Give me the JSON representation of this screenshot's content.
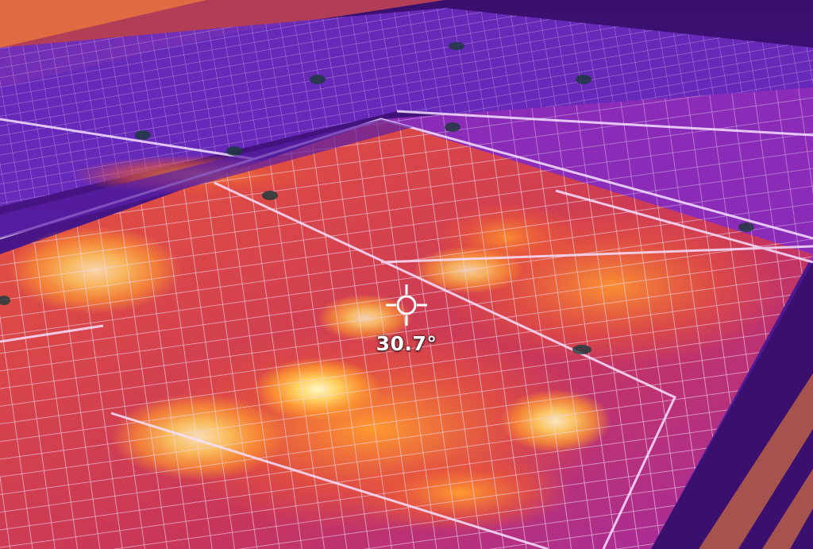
{
  "thermal_view": {
    "spot_temperature": "30.7°",
    "palette": {
      "coldest": "#2a0a55",
      "cool": "#5a1fa8",
      "mid": "#a02aa8",
      "warm": "#e8553a",
      "hot": "#ffb020",
      "hottest": "#fff7c8"
    },
    "icons": [
      "crosshair-icon"
    ]
  }
}
